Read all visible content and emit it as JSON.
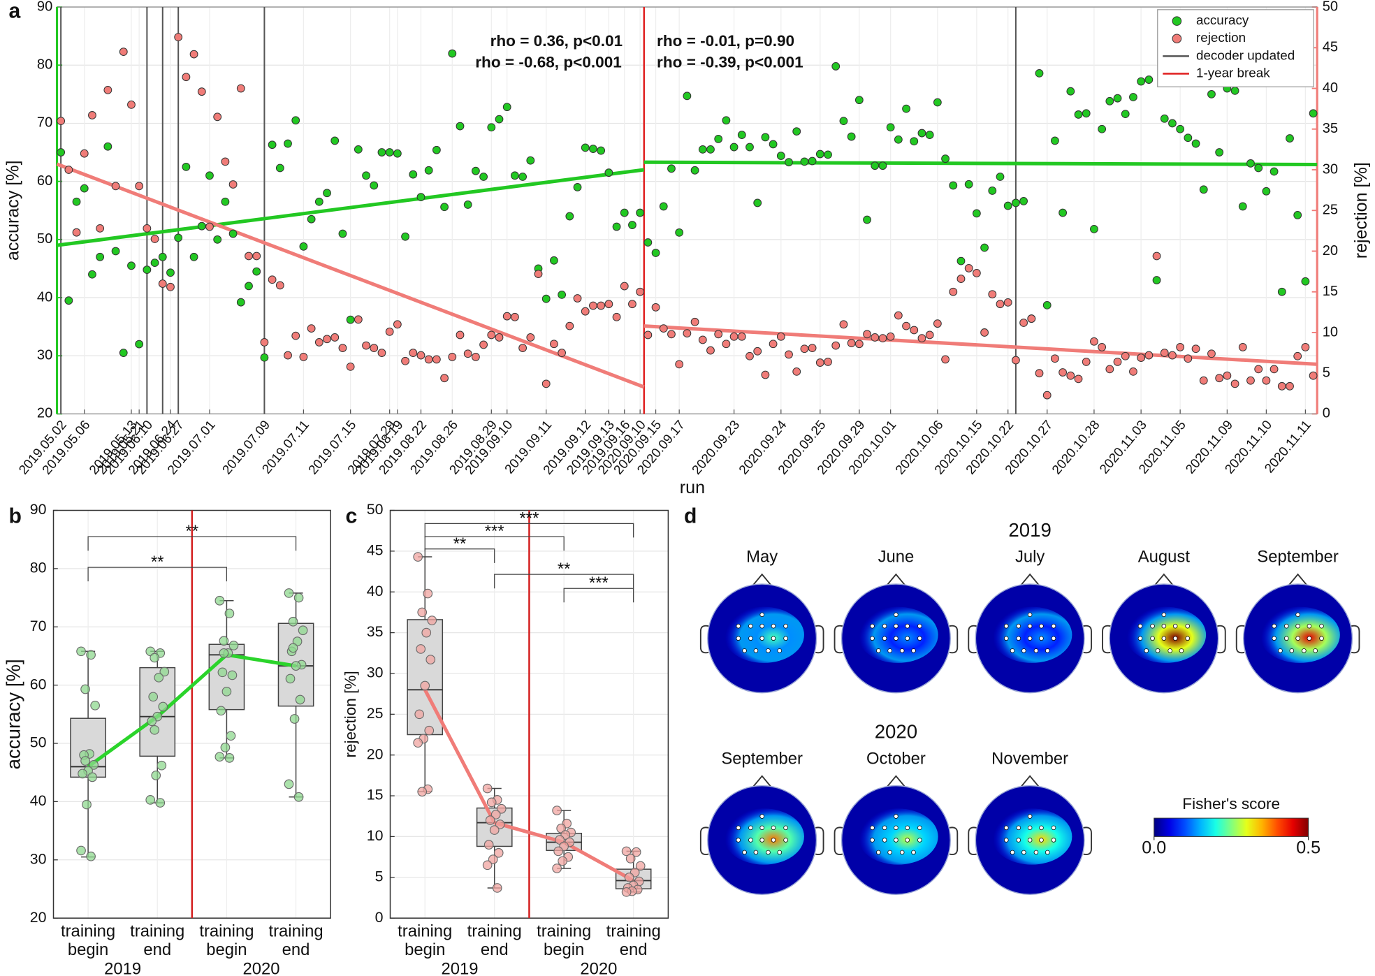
{
  "chart_data": [
    {
      "type": "scatter",
      "panel": "a",
      "xlabel": "run",
      "ylabel": "accuracy [%]",
      "y2label": "rejection [%]",
      "grid": true,
      "legend": "upper right",
      "x": [
        1,
        2,
        3,
        4,
        5,
        6,
        7,
        8,
        9,
        10,
        11,
        12,
        13,
        14,
        15,
        16,
        17,
        18,
        19,
        20,
        21,
        22,
        23,
        24,
        25,
        26,
        27,
        28,
        29,
        30,
        31,
        32,
        33,
        34,
        35,
        36,
        37,
        38,
        39,
        40,
        41,
        42,
        43,
        44,
        45,
        46,
        47,
        48,
        49,
        50,
        51,
        52,
        53,
        54,
        55,
        56,
        57,
        58,
        59,
        60,
        61,
        62,
        63,
        64,
        65,
        66,
        67,
        68,
        69,
        70,
        71,
        72,
        73,
        74,
        75,
        76,
        77,
        78,
        79,
        80,
        81,
        82,
        83,
        84,
        85,
        86,
        87,
        88,
        89,
        90,
        91,
        92,
        93,
        94,
        95,
        96,
        97,
        98,
        99,
        100,
        101,
        102,
        103,
        104,
        105,
        106,
        107,
        108,
        109,
        110,
        111,
        112,
        113,
        114,
        115,
        116,
        117,
        118,
        119,
        120,
        121,
        122,
        123,
        124,
        125,
        126,
        127,
        128,
        129,
        130,
        131,
        132,
        133,
        134,
        135,
        136,
        137,
        138,
        139,
        140,
        141,
        142,
        143,
        144,
        145,
        146,
        147,
        148,
        149,
        150,
        151,
        152,
        153,
        154,
        155,
        156,
        157,
        158,
        159,
        160,
        161
      ],
      "xlim": [
        0.5,
        161.5
      ],
      "xticks": [
        {
          "value": 1,
          "label": "2019.05.02"
        },
        {
          "value": 4,
          "label": "2019.05.06"
        },
        {
          "value": 10,
          "label": "2019.05.13"
        },
        {
          "value": 11,
          "label": "2019.05.21"
        },
        {
          "value": 12,
          "label": "2019.06.10"
        },
        {
          "value": 15,
          "label": "2019.06.24"
        },
        {
          "value": 16,
          "label": "2019.06.27"
        },
        {
          "value": 20,
          "label": "2019.07.01"
        },
        {
          "value": 27,
          "label": "2019.07.09"
        },
        {
          "value": 32,
          "label": "2019.07.11"
        },
        {
          "value": 38,
          "label": "2019.07.15"
        },
        {
          "value": 43,
          "label": "2019.07.29"
        },
        {
          "value": 44,
          "label": "2019.08.19"
        },
        {
          "value": 47,
          "label": "2019.08.22"
        },
        {
          "value": 51,
          "label": "2019.08.26"
        },
        {
          "value": 56,
          "label": "2019.08.29"
        },
        {
          "value": 58,
          "label": "2019.09.10"
        },
        {
          "value": 63,
          "label": "2019.09.11"
        },
        {
          "value": 68,
          "label": "2019.09.12"
        },
        {
          "value": 71,
          "label": "2019.09.13"
        },
        {
          "value": 73,
          "label": "2019.09.16"
        },
        {
          "value": 75,
          "label": "2020.09.10"
        },
        {
          "value": 77,
          "label": "2020.09.15"
        },
        {
          "value": 80,
          "label": "2020.09.17"
        },
        {
          "value": 87,
          "label": "2020.09.23"
        },
        {
          "value": 93,
          "label": "2020.09.24"
        },
        {
          "value": 98,
          "label": "2020.09.25"
        },
        {
          "value": 103,
          "label": "2020.09.29"
        },
        {
          "value": 107,
          "label": "2020.10.01"
        },
        {
          "value": 113,
          "label": "2020.10.06"
        },
        {
          "value": 118,
          "label": "2020.10.15"
        },
        {
          "value": 122,
          "label": "2020.10.22"
        },
        {
          "value": 127,
          "label": "2020.10.27"
        },
        {
          "value": 133,
          "label": "2020.10.28"
        },
        {
          "value": 139,
          "label": "2020.11.03"
        },
        {
          "value": 144,
          "label": "2020.11.05"
        },
        {
          "value": 150,
          "label": "2020.11.09"
        },
        {
          "value": 155,
          "label": "2020.11.10"
        },
        {
          "value": 160,
          "label": "2020.11.11"
        }
      ],
      "ylim": [
        20,
        90
      ],
      "yticks": [
        20,
        30,
        40,
        50,
        60,
        70,
        80,
        90
      ],
      "y2lim": [
        0,
        50
      ],
      "y2ticks": [
        0,
        5,
        10,
        15,
        20,
        25,
        30,
        35,
        40,
        45,
        50
      ],
      "series": [
        {
          "name": "accuracy",
          "color": "#22c822",
          "values": [
            65,
            39.5,
            56.5,
            58.8,
            44,
            47,
            66,
            48,
            30.5,
            45.5,
            32,
            44.8,
            46,
            47,
            44.3,
            50.3,
            62.5,
            47,
            52.3,
            61,
            50,
            56.5,
            51,
            39.2,
            42,
            44.5,
            29.7,
            66.3,
            62.3,
            66.5,
            70.5,
            48.8,
            53.5,
            56.5,
            58,
            67,
            51,
            36.2,
            65.5,
            61,
            59.3,
            65,
            65,
            64.8,
            50.5,
            61.2,
            57.3,
            61.9,
            65.4,
            55.6,
            82,
            69.5,
            56,
            61.8,
            60.8,
            69.3,
            70.7,
            72.8,
            61,
            60.8,
            63.6,
            45,
            39.8,
            46.4,
            40.5,
            54,
            59,
            65.8,
            65.6,
            65.3,
            61.5,
            52.2,
            54.6,
            52.5,
            54.6,
            49.5,
            47.7,
            55.7,
            62.2,
            51.2,
            74.7,
            61.9,
            65.5,
            65.5,
            67.3,
            70.5,
            65.9,
            68,
            65.9,
            56.3,
            67.6,
            66.4,
            64.4,
            63.3,
            68.6,
            63.4,
            63.5,
            64.7,
            64.6,
            79.8,
            70.4,
            67.7,
            74,
            53.4,
            62.7,
            62.7,
            69.3,
            67.2,
            72.5,
            66.9,
            68.3,
            68,
            73.6,
            63.9,
            59.3,
            46.3,
            59.5,
            54.5,
            48.6,
            58.4,
            60.8,
            55.8,
            56.3,
            56.6,
            36.4,
            78.6,
            38.7,
            67,
            54.6,
            75.5,
            71.5,
            71.7,
            51.8,
            69,
            73.8,
            74.3,
            71.6,
            74.5,
            77.2,
            77.5,
            43,
            70.8,
            70,
            69,
            67.5,
            66.5,
            58.6,
            75,
            65,
            76,
            75.6,
            55.7,
            63.1,
            62.3,
            58.3,
            61.7,
            41,
            67.4,
            54.2,
            42.8,
            71.7
          ],
          "trends": [
            {
              "x": [
                0.5,
                75.5
              ],
              "values": [
                49,
                62
              ]
            },
            {
              "x": [
                75.5,
                161.5
              ],
              "values": [
                63.3,
                62.9
              ]
            }
          ]
        },
        {
          "name": "rejection",
          "color": "#f07c78",
          "axis": "y2",
          "values": [
            36,
            30,
            22.3,
            32,
            36.7,
            22.8,
            39.8,
            28,
            44.5,
            38,
            28,
            22.8,
            21.5,
            16,
            15.6,
            46.3,
            41.4,
            44.2,
            39.6,
            23,
            36.5,
            31,
            28.2,
            40,
            19.4,
            19.4,
            8.8,
            16.5,
            15.8,
            7.2,
            9.6,
            7,
            10.5,
            8.8,
            9.2,
            9.4,
            8.1,
            5.8,
            11.6,
            8.4,
            8.1,
            7.5,
            10.1,
            11,
            6.5,
            7.5,
            7.2,
            6.7,
            6.7,
            4.4,
            7,
            9.7,
            7.4,
            7,
            8.5,
            9.7,
            9.4,
            12,
            11.9,
            8.1,
            9.4,
            17.2,
            3.7,
            8.6,
            7.5,
            10.8,
            14.2,
            12.6,
            13.3,
            13.3,
            13.5,
            11.9,
            15.7,
            13.5,
            15,
            9.7,
            13.1,
            10.5,
            9.8,
            6.1,
            9.9,
            11.3,
            9.1,
            7.8,
            9.8,
            8.6,
            9.5,
            9.5,
            7.1,
            7.7,
            4.8,
            8.6,
            9.5,
            7.3,
            5.2,
            8,
            8.1,
            6.3,
            6.4,
            8.4,
            11,
            8.7,
            8.6,
            9.8,
            9.4,
            9.3,
            9.5,
            12.1,
            10.8,
            10.3,
            9.3,
            9.7,
            11.1,
            6.7,
            15,
            16.6,
            17.9,
            17.3,
            10,
            14.7,
            13.5,
            13.7,
            6.6,
            11.2,
            11.7,
            5,
            2.3,
            6.8,
            5.1,
            4.7,
            4.3,
            6.4,
            8.9,
            8.2,
            5.5,
            6.4,
            7.1,
            5.2,
            6.9,
            7.2,
            19.4,
            7.5,
            7.2,
            8.2,
            6.8,
            8,
            4.1,
            7.4,
            4.4,
            4.7,
            3.7,
            8.2,
            4.1,
            5.5,
            4.1,
            5.5,
            3.4,
            3.4,
            7.1,
            8.2,
            4.7
          ],
          "trends": [
            {
              "x": [
                0.5,
                75.5
              ],
              "values": [
                30.7,
                3.3
              ]
            },
            {
              "x": [
                75.5,
                161.5
              ],
              "values": [
                10.8,
                6.1
              ]
            }
          ]
        }
      ],
      "decoder_updates": {
        "name": "decoder updated",
        "color": "#555555",
        "x": [
          1,
          12,
          14,
          16,
          27,
          123
        ]
      },
      "breaks": {
        "name": "1-year break",
        "color": "#e02424",
        "x": [
          75.5
        ]
      },
      "annotations": [
        {
          "text": "rho = 0.36, p<0.01",
          "color": "#22c822"
        },
        {
          "text": "rho = -0.01, p=0.90",
          "color": "#22c822"
        },
        {
          "text": "rho = -0.68, p<0.001",
          "color": "#f07c78"
        },
        {
          "text": "rho = -0.39, p<0.001",
          "color": "#f07c78"
        }
      ]
    },
    {
      "type": "box",
      "panel": "b",
      "ylabel": "accuracy [%]",
      "grid": true,
      "categories": [
        [
          "training",
          "begin"
        ],
        [
          "training",
          "end"
        ],
        [
          "training",
          "begin"
        ],
        [
          "training",
          "end"
        ]
      ],
      "groups": [
        "2019",
        "2020"
      ],
      "ylim": [
        20,
        90
      ],
      "yticks": [
        20,
        30,
        40,
        50,
        60,
        70,
        80,
        90
      ],
      "point_color": "#8fd88f",
      "line_color": "#2bd42b",
      "separator_color": "#d42020",
      "boxes": [
        {
          "q1": 44.2,
          "median": 46,
          "q3": 54.3,
          "whisker_low": 30.5,
          "whisker_high": 65.8,
          "points": [
            65.8,
            65.2,
            59.3,
            56.5,
            48.2,
            48,
            46.3,
            45.3,
            44.8,
            44.2,
            39.5,
            31.6,
            30.6,
            47
          ]
        },
        {
          "q1": 47.8,
          "median": 54.6,
          "q3": 63,
          "whisker_low": 39.8,
          "whisker_high": 65.8,
          "points": [
            65.8,
            65.5,
            64.7,
            62.3,
            61.3,
            58,
            56.3,
            54.6,
            53.8,
            46.2,
            44.5,
            40.3,
            39.8,
            52.3
          ]
        },
        {
          "q1": 55.8,
          "median": 65.2,
          "q3": 67,
          "whisker_low": 47.5,
          "whisker_high": 74.5,
          "points": [
            74.5,
            72.3,
            67.6,
            66.8,
            65.5,
            62.2,
            61.7,
            58.9,
            55.6,
            51.3,
            49.3,
            47.7,
            47.5,
            65.5
          ]
        },
        {
          "q1": 56.4,
          "median": 63.3,
          "q3": 70.6,
          "whisker_low": 40.8,
          "whisker_high": 75.8,
          "points": [
            75.8,
            75,
            70.9,
            69.4,
            67.5,
            65.8,
            63.5,
            63.3,
            61.1,
            57.5,
            54.2,
            43,
            40.8,
            66.4
          ]
        }
      ],
      "brackets": [
        {
          "from": 0,
          "to": 3,
          "label": "**"
        },
        {
          "from": 0,
          "to": 2,
          "label": "**"
        }
      ]
    },
    {
      "type": "box",
      "panel": "c",
      "ylabel": "rejection [%]",
      "grid": true,
      "categories": [
        [
          "training",
          "begin"
        ],
        [
          "training",
          "end"
        ],
        [
          "training",
          "begin"
        ],
        [
          "training",
          "end"
        ]
      ],
      "groups": [
        "2019",
        "2020"
      ],
      "ylim": [
        0,
        50
      ],
      "yticks": [
        0,
        5,
        10,
        15,
        20,
        25,
        30,
        35,
        40,
        45,
        50
      ],
      "point_color": "#f0a4a0",
      "line_color": "#f07c78",
      "separator_color": "#d42020",
      "boxes": [
        {
          "q1": 22.5,
          "median": 28,
          "q3": 36.6,
          "whisker_low": 15.5,
          "whisker_high": 44.3,
          "points": [
            44.3,
            39.8,
            37.5,
            36.5,
            35,
            33,
            31.7,
            28.5,
            25,
            23,
            22,
            21.5,
            15.8,
            15.5
          ]
        },
        {
          "q1": 8.8,
          "median": 11.7,
          "q3": 13.5,
          "whisker_low": 3.7,
          "whisker_high": 15.9,
          "points": [
            15.9,
            14.5,
            14.2,
            13.4,
            12.7,
            12,
            11.5,
            10.8,
            9,
            8,
            7.2,
            6.5,
            3.7
          ]
        },
        {
          "q1": 8.3,
          "median": 9.3,
          "q3": 10.4,
          "whisker_low": 6.1,
          "whisker_high": 13.2,
          "points": [
            13.2,
            11.6,
            11,
            10.5,
            10.2,
            9.6,
            9.3,
            8.8,
            8.2,
            7.5,
            7,
            6.1
          ]
        },
        {
          "q1": 3.6,
          "median": 4.6,
          "q3": 6,
          "whisker_low": 3.2,
          "whisker_high": 8.2,
          "points": [
            8.2,
            8.1,
            7.3,
            6.4,
            5.6,
            5,
            4.5,
            4,
            3.7,
            3.5,
            3.3,
            3.2
          ]
        }
      ],
      "brackets": [
        {
          "from": 0,
          "to": 3,
          "label": "***"
        },
        {
          "from": 0,
          "to": 2,
          "label": "***"
        },
        {
          "from": 0,
          "to": 1,
          "label": "**"
        },
        {
          "from": 1,
          "to": 3,
          "label": "**"
        },
        {
          "from": 2,
          "to": 3,
          "label": "***"
        }
      ]
    }
  ],
  "topomaps": {
    "panel": "d",
    "groups": [
      {
        "year": "2019",
        "maps": [
          {
            "label": "May",
            "peak": 0.22
          },
          {
            "label": "June",
            "peak": 0.13
          },
          {
            "label": "July",
            "peak": 0.13
          },
          {
            "label": "August",
            "peak": 0.5
          },
          {
            "label": "September",
            "peak": 0.45
          }
        ]
      },
      {
        "year": "2020",
        "maps": [
          {
            "label": "September",
            "peak": 0.38
          },
          {
            "label": "October",
            "peak": 0.28
          },
          {
            "label": "November",
            "peak": 0.33
          }
        ]
      }
    ],
    "colorbar": {
      "title": "Fisher's score",
      "lim": [
        0,
        0.5
      ],
      "ticks": [
        {
          "value": 0,
          "label": "0.0"
        },
        {
          "value": 0.5,
          "label": "0.5"
        }
      ]
    }
  }
}
